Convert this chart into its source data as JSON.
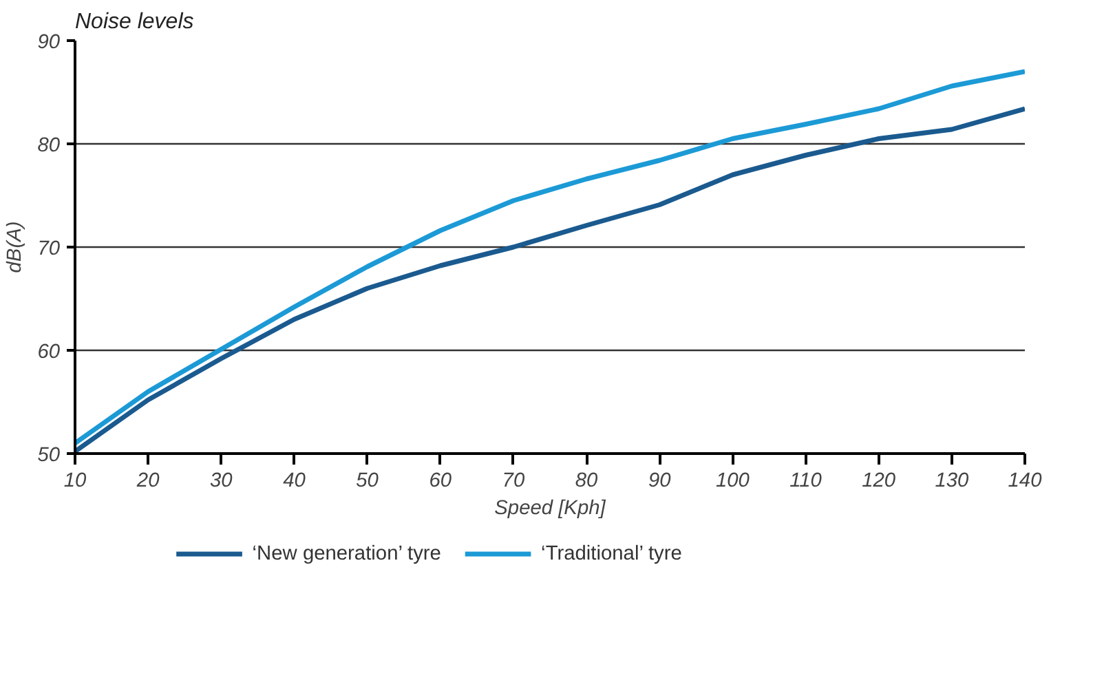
{
  "chart_data": {
    "type": "line",
    "title": "Noise levels",
    "xlabel": "Speed [Kph]",
    "ylabel": "dB(A)",
    "x": [
      10,
      20,
      30,
      40,
      50,
      60,
      70,
      80,
      90,
      100,
      110,
      120,
      130,
      140
    ],
    "series": [
      {
        "name": "‘New generation’ tyre",
        "color": "#1a5a8f",
        "values": [
          50.2,
          55.2,
          59.2,
          63,
          66,
          68.2,
          70,
          72.1,
          74.1,
          77,
          78.9,
          80.5,
          81.4,
          83.4
        ]
      },
      {
        "name": "‘Traditional’ tyre",
        "color": "#1c9ad6",
        "values": [
          51,
          56,
          60.1,
          64.2,
          68.1,
          71.6,
          74.5,
          76.6,
          78.4,
          80.5,
          81.9,
          83.4,
          85.6,
          87
        ]
      }
    ],
    "xlim": [
      10,
      140
    ],
    "xticks": [
      10,
      20,
      30,
      40,
      50,
      60,
      70,
      80,
      90,
      100,
      110,
      120,
      130,
      140
    ],
    "ylim": [
      50,
      90
    ],
    "yticks": [
      50,
      60,
      70,
      80,
      90
    ],
    "grid": "y",
    "legend": "bottom",
    "marker": "none",
    "line_style": "solid"
  }
}
